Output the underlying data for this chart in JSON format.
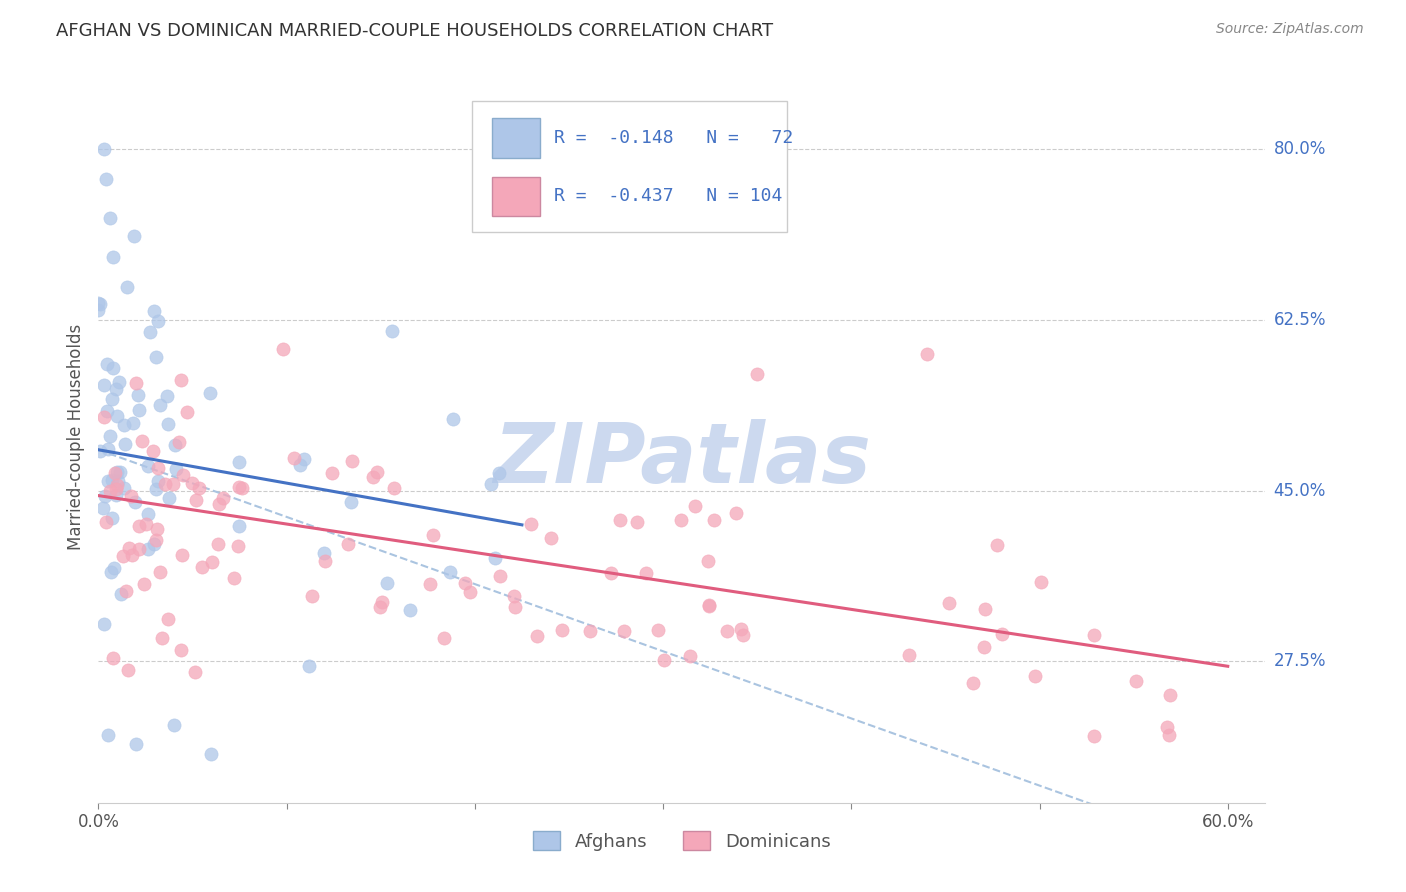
{
  "title": "AFGHAN VS DOMINICAN MARRIED-COUPLE HOUSEHOLDS CORRELATION CHART",
  "source": "Source: ZipAtlas.com",
  "ylabel": "Married-couple Households",
  "y_ticks": [
    0.275,
    0.45,
    0.625,
    0.8
  ],
  "y_tick_labels": [
    "27.5%",
    "45.0%",
    "62.5%",
    "80.0%"
  ],
  "afghan_R": -0.148,
  "afghan_N": 72,
  "dominican_R": -0.437,
  "dominican_N": 104,
  "afghan_color": "#aec6e8",
  "dominican_color": "#f4a7b9",
  "afghan_line_color": "#4472c4",
  "dominican_line_color": "#e05c7e",
  "dashed_line_color": "#aac4e0",
  "watermark_color": "#ccd9ef",
  "background_color": "#ffffff",
  "grid_color": "#cccccc",
  "title_color": "#333333",
  "right_label_color": "#4472c4",
  "xlim": [
    0.0,
    0.62
  ],
  "ylim": [
    0.13,
    0.88
  ],
  "afghan_line_x": [
    0.0,
    0.225
  ],
  "afghan_line_y": [
    0.492,
    0.415
  ],
  "dominican_line_x": [
    0.0,
    0.6
  ],
  "dominican_line_y": [
    0.445,
    0.27
  ],
  "dashed_line_x": [
    0.0,
    0.62
  ],
  "dashed_line_y": [
    0.492,
    0.065
  ]
}
